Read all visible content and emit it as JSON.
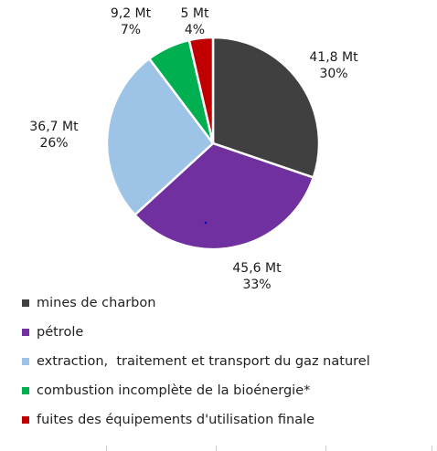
{
  "chart_data": {
    "type": "pie",
    "title": "",
    "unit": "Mt",
    "slices": [
      {
        "name": "mines de charbon",
        "value": 41.8,
        "value_label": "41,8 Mt",
        "percent_label": "30%",
        "color": "#404040"
      },
      {
        "name": "pétrole",
        "value": 45.6,
        "value_label": "45,6 Mt",
        "percent_label": "33%",
        "color": "#7030a0"
      },
      {
        "name": "extraction,  traitement et transport du gaz naturel",
        "value": 36.7,
        "value_label": "36,7 Mt",
        "percent_label": "26%",
        "color": "#9dc3e6"
      },
      {
        "name": "combustion incomplète de la bioénergie*",
        "value": 9.2,
        "value_label": "9,2 Mt",
        "percent_label": "7%",
        "color": "#00b050"
      },
      {
        "name": "fuites des équipements d'utilisation finale",
        "value": 5,
        "value_label": "5 Mt",
        "percent_label": "4%",
        "color": "#c00000"
      }
    ],
    "legend_position": "bottom"
  }
}
